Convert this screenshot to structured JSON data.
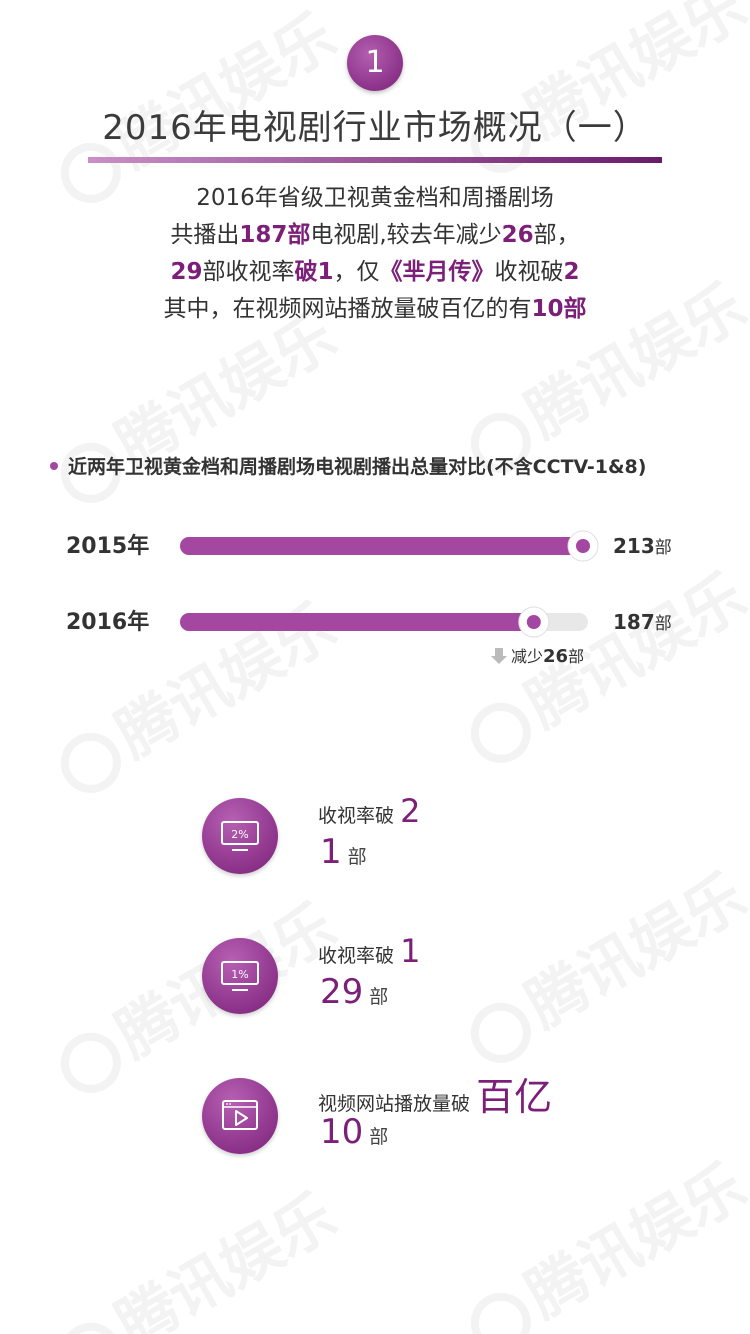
{
  "badge": "1",
  "title": "2016年电视剧行业市场概况（一）",
  "summary": {
    "line1": "2016年省级卫视黄金档和周播剧场",
    "line2": {
      "a": "共播出",
      "b": "187部",
      "c": "电视剧,较去年减少",
      "d": "26",
      "e": "部，"
    },
    "line3": {
      "a": "29",
      "b": "部收视率",
      "c": "破1",
      "d": "，仅",
      "e": "《芈月传》",
      "f": "收视破",
      "g": "2"
    },
    "line4": {
      "a": "其中，在视频网站播放量破百亿的有",
      "b": "10部"
    }
  },
  "legend": "近两年卫视黄金档和周播剧场电视剧播出总量对比(不含CCTV-1&8)",
  "colors": {
    "accent": "#7b1f79",
    "bar": "#a347a0",
    "track": "#e8e8e8"
  },
  "chart_data": {
    "type": "bar",
    "orientation": "horizontal",
    "categories": [
      "2015年",
      "2016年"
    ],
    "values": [
      213,
      187
    ],
    "value_labels": [
      {
        "num": "213",
        "unit": "部"
      },
      {
        "num": "187",
        "unit": "部"
      }
    ],
    "xlim": [
      0,
      213
    ],
    "annotation": {
      "prefix": "减少",
      "num": "26",
      "unit": "部",
      "icon": "down-arrow-icon"
    },
    "grid": false
  },
  "stats": [
    {
      "icon": "monitor-2pct-icon",
      "icon_text": "2%",
      "label": "收视率破",
      "big": "2",
      "count": "1",
      "unit": "部"
    },
    {
      "icon": "monitor-1pct-icon",
      "icon_text": "1%",
      "label": "收视率破",
      "big": "1",
      "count": "29",
      "unit": "部"
    },
    {
      "icon": "video-play-icon",
      "label": "视频网站播放量破",
      "big": "百亿",
      "count": "10",
      "unit": "部"
    }
  ],
  "watermark": "腾讯娱乐"
}
